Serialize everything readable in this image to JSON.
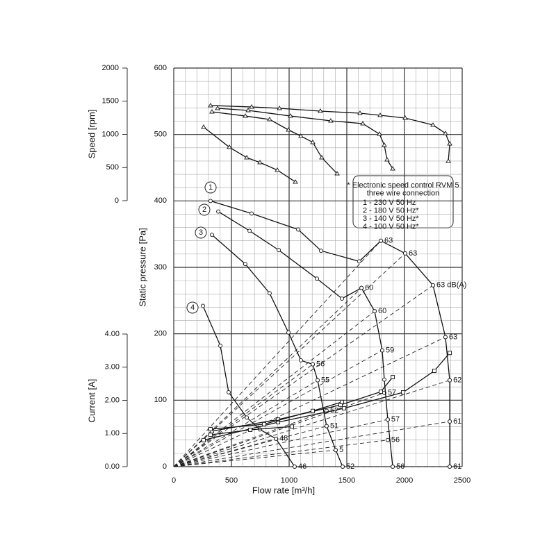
{
  "chart_data": {
    "type": "fan-curve",
    "x_label": "Flow rate [m³/h]",
    "y_label": "Static pressure [Pa]",
    "y2_label": "Speed [rpm]",
    "y3_label": "Current [A]",
    "xlim": [
      0,
      2500
    ],
    "xticks": [
      0,
      500,
      1000,
      1500,
      2000,
      2500
    ],
    "ylim": [
      0,
      600
    ],
    "yticks": [
      0,
      100,
      200,
      300,
      400,
      500,
      600
    ],
    "y2lim": [
      0,
      2000
    ],
    "y2ticks": [
      0,
      500,
      1000,
      1500,
      2000
    ],
    "y3lim": [
      0,
      4
    ],
    "y3ticks": [
      {
        "value": 0,
        "label": "0.00"
      },
      {
        "value": 1,
        "label": "1.00"
      },
      {
        "value": 2,
        "label": "2.00"
      },
      {
        "value": 3,
        "label": "3.00"
      },
      {
        "value": 4,
        "label": "4.00"
      }
    ],
    "grid": true,
    "x_minor_step": 100,
    "y_minor_step": 20,
    "pressure_curves": [
      {
        "label": "1",
        "x": [
          319,
          675,
          1078,
          1277,
          1608,
          1795,
          2006,
          2247,
          2355,
          2392,
          2392,
          2392
        ],
        "values": [
          400,
          381,
          357,
          325,
          309,
          340,
          321,
          273,
          195,
          130,
          68,
          0
        ]
      },
      {
        "label": "2",
        "x": [
          386,
          657,
          910,
          1241,
          1458,
          1627,
          1741,
          1807,
          1825,
          1855,
          1898
        ],
        "values": [
          384,
          355,
          326,
          283,
          253,
          269,
          234,
          175,
          131,
          71,
          0
        ]
      },
      {
        "label": "3",
        "x": [
          331,
          620,
          831,
          994,
          1102,
          1205,
          1247,
          1325,
          1404,
          1464
        ],
        "values": [
          349,
          305,
          261,
          202,
          160,
          154,
          130,
          61,
          25,
          0
        ]
      },
      {
        "label": "4",
        "x": [
          253,
          404,
          476,
          633,
          747,
          886,
          1048
        ],
        "values": [
          242,
          182,
          112,
          74,
          56,
          42,
          0
        ]
      }
    ],
    "speed_curves": [
      {
        "x": [
          319,
          675,
          916,
          1271,
          1614,
          1789,
          2006,
          2247,
          2355,
          2392,
          2380
        ],
        "values": [
          1435,
          1414,
          1393,
          1351,
          1319,
          1288,
          1246,
          1141,
          1016,
          859,
          597
        ]
      },
      {
        "x": [
          380,
          645,
          1012,
          1361,
          1639,
          1783,
          1825,
          1849,
          1898
        ],
        "values": [
          1393,
          1361,
          1277,
          1204,
          1162,
          1005,
          838,
          618,
          482
        ]
      },
      {
        "x": [
          331,
          620,
          831,
          994,
          1102,
          1205,
          1283,
          1416
        ],
        "values": [
          1340,
          1277,
          1225,
          1068,
          974,
          880,
          649,
          408
        ]
      },
      {
        "x": [
          259,
          482,
          633,
          747,
          898,
          1054
        ],
        "values": [
          1110,
          806,
          649,
          576,
          461,
          283
        ]
      }
    ],
    "current_curves": [
      {
        "x": [
          259,
          904,
          1476,
          1988,
          2259,
          2392
        ],
        "values": [
          0.8,
          1.34,
          1.76,
          2.24,
          2.89,
          3.43
        ]
      },
      {
        "x": [
          331,
          904,
          1446,
          1795,
          1898
        ],
        "values": [
          1.07,
          1.42,
          1.86,
          2.26,
          2.7
        ]
      },
      {
        "x": [
          319,
          783,
          1205,
          1458
        ],
        "values": [
          1.13,
          1.28,
          1.68,
          1.95
        ]
      },
      {
        "x": [
          319,
          663,
          1024
        ],
        "values": [
          0.96,
          1.11,
          1.21
        ]
      }
    ],
    "noise_points": [
      {
        "x": 1795,
        "y": 340,
        "label": "63"
      },
      {
        "x": 2006,
        "y": 321,
        "label": "63"
      },
      {
        "x": 2247,
        "y": 273,
        "label": "63 dB(A)"
      },
      {
        "x": 2355,
        "y": 195,
        "label": "63"
      },
      {
        "x": 2392,
        "y": 130,
        "label": "62"
      },
      {
        "x": 2392,
        "y": 68,
        "label": "61"
      },
      {
        "x": 2392,
        "y": 0,
        "label": "61"
      },
      {
        "x": 1627,
        "y": 269,
        "label": "60"
      },
      {
        "x": 1741,
        "y": 234,
        "label": "60"
      },
      {
        "x": 1807,
        "y": 175,
        "label": "59"
      },
      {
        "x": 1825,
        "y": 111,
        "label": "57"
      },
      {
        "x": 1855,
        "y": 71,
        "label": "57"
      },
      {
        "x": 1855,
        "y": 40,
        "label": "56"
      },
      {
        "x": 1898,
        "y": 0,
        "label": "56"
      },
      {
        "x": 1205,
        "y": 154,
        "label": "56"
      },
      {
        "x": 1247,
        "y": 130,
        "label": "55"
      },
      {
        "x": 1325,
        "y": 84,
        "label": "52"
      },
      {
        "x": 1325,
        "y": 61,
        "label": "51"
      },
      {
        "x": 1404,
        "y": 25,
        "label": "5"
      },
      {
        "x": 1464,
        "y": 0,
        "label": "52"
      },
      {
        "x": 886,
        "y": 42,
        "label": "48"
      },
      {
        "x": 1048,
        "y": 0,
        "label": "46"
      }
    ],
    "legend": [
      "* Electronic speed control RVM 5",
      "three wire connection",
      "1 - 230 V 50 Hz",
      "2 - 180 V 50 Hz*",
      "3 - 140 V 50 Hz*",
      "4 - 100 V 50 Hz*"
    ]
  }
}
